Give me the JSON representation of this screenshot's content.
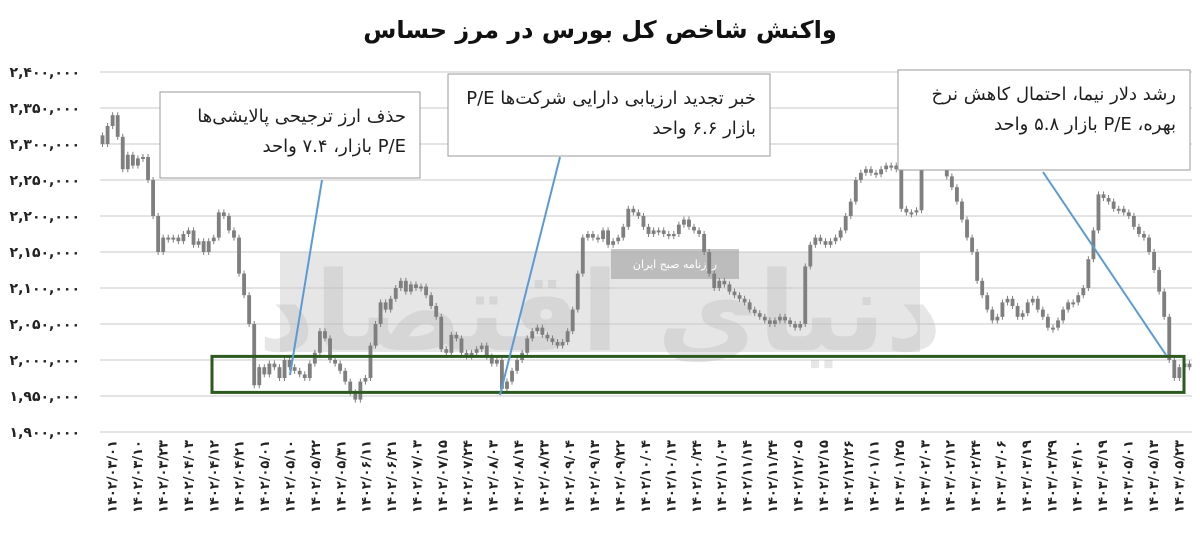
{
  "chart_data": {
    "type": "candlestick",
    "title": "واکنش شاخص کل بورس در مرز حساس",
    "ylim": [
      1900000,
      2400000
    ],
    "y_ticks": [
      1900000,
      1950000,
      2000000,
      2050000,
      2100000,
      2150000,
      2200000,
      2250000,
      2300000,
      2350000,
      2400000
    ],
    "y_tick_labels": [
      "۱,۹۰۰,۰۰۰",
      "۱,۹۵۰,۰۰۰",
      "۲,۰۰۰,۰۰۰",
      "۲,۰۵۰,۰۰۰",
      "۲,۱۰۰,۰۰۰",
      "۲,۱۵۰,۰۰۰",
      "۲,۲۰۰,۰۰۰",
      "۲,۲۵۰,۰۰۰",
      "۲,۳۰۰,۰۰۰",
      "۲,۳۵۰,۰۰۰",
      "۲,۴۰۰,۰۰۰"
    ],
    "x_tick_labels": [
      "۱۴۰۲/۰۳/۰۱",
      "۱۴۰۲/۰۳/۱۰",
      "۱۴۰۲/۰۳/۲۳",
      "۱۴۰۲/۰۴/۰۳",
      "۱۴۰۲/۰۴/۱۲",
      "۱۴۰۲/۰۴/۲۱",
      "۱۴۰۲/۰۵/۰۱",
      "۱۴۰۲/۰۵/۱۰",
      "۱۴۰۲/۰۵/۲۲",
      "۱۴۰۲/۰۵/۳۱",
      "۱۴۰۲/۰۶/۱۱",
      "۱۴۰۲/۰۶/۲۱",
      "۱۴۰۲/۰۷/۰۳",
      "۱۴۰۲/۰۷/۱۵",
      "۱۴۰۲/۰۷/۲۴",
      "۱۴۰۲/۰۸/۰۳",
      "۱۴۰۲/۰۸/۱۴",
      "۱۴۰۲/۰۸/۲۳",
      "۱۴۰۲/۰۹/۰۴",
      "۱۴۰۲/۰۹/۱۳",
      "۱۴۰۲/۰۹/۲۲",
      "۱۴۰۲/۱۰/۰۴",
      "۱۴۰۲/۱۰/۱۳",
      "۱۴۰۲/۱۰/۲۴",
      "۱۴۰۲/۱۱/۰۳",
      "۱۴۰۲/۱۱/۱۴",
      "۱۴۰۲/۱۱/۲۴",
      "۱۴۰۲/۱۲/۰۵",
      "۱۴۰۲/۱۲/۱۵",
      "۱۴۰۲/۱۲/۲۶",
      "۱۴۰۳/۰۱/۱۱",
      "۱۴۰۳/۰۱/۲۵",
      "۱۴۰۳/۰۲/۰۳",
      "۱۴۰۳/۰۲/۱۲",
      "۱۴۰۳/۰۲/۲۴",
      "۱۴۰۳/۰۳/۰۶",
      "۱۴۰۳/۰۳/۱۹",
      "۱۴۰۳/۰۳/۲۹",
      "۱۴۰۳/۰۴/۱۰",
      "۱۴۰۳/۰۴/۱۹",
      "۱۴۰۳/۰۵/۰۱",
      "۱۴۰۳/۰۵/۱۳",
      "۱۴۰۳/۰۵/۲۳"
    ],
    "closes": [
      2300000,
      2325000,
      2340000,
      2310000,
      2265000,
      2285000,
      2270000,
      2280000,
      2282000,
      2250000,
      2200000,
      2150000,
      2170000,
      2168000,
      2170000,
      2165000,
      2175000,
      2180000,
      2160000,
      2165000,
      2150000,
      2165000,
      2170000,
      2205000,
      2200000,
      2180000,
      2170000,
      2120000,
      2090000,
      2050000,
      1965000,
      1990000,
      1980000,
      1995000,
      1990000,
      1975000,
      2000000,
      1990000,
      1985000,
      1980000,
      1975000,
      1995000,
      2010000,
      2040000,
      2030000,
      2000000,
      1995000,
      1985000,
      1970000,
      1955000,
      1945000,
      1970000,
      1975000,
      2020000,
      2050000,
      2080000,
      2070000,
      2085000,
      2100000,
      2110000,
      2095000,
      2105000,
      2100000,
      2102000,
      2090000,
      2075000,
      2060000,
      2015000,
      2010000,
      2035000,
      2030000,
      2010000,
      2005000,
      2010000,
      2015000,
      2020000,
      2005000,
      1995000,
      2000000,
      1960000,
      1970000,
      1985000,
      2000000,
      2010000,
      2030000,
      2040000,
      2045000,
      2035000,
      2030000,
      2025000,
      2020000,
      2025000,
      2040000,
      2070000,
      2120000,
      2170000,
      2175000,
      2170000,
      2168000,
      2180000,
      2160000,
      2165000,
      2170000,
      2185000,
      2210000,
      2205000,
      2200000,
      2185000,
      2175000,
      2180000,
      2180000,
      2175000,
      2172000,
      2175000,
      2188000,
      2195000,
      2185000,
      2180000,
      2175000,
      2150000,
      2120000,
      2100000,
      2110000,
      2105000,
      2095000,
      2090000,
      2085000,
      2080000,
      2070000,
      2065000,
      2060000,
      2055000,
      2050000,
      2055000,
      2060000,
      2055000,
      2050000,
      2045000,
      2050000,
      2130000,
      2160000,
      2170000,
      2165000,
      2160000,
      2165000,
      2170000,
      2180000,
      2200000,
      2220000,
      2250000,
      2260000,
      2265000,
      2260000,
      2258000,
      2265000,
      2270000,
      2270000,
      2265000,
      2210000,
      2205000,
      2205000,
      2208000,
      2285000,
      2305000,
      2300000,
      2285000,
      2270000,
      2255000,
      2240000,
      2220000,
      2195000,
      2170000,
      2150000,
      2110000,
      2090000,
      2070000,
      2055000,
      2060000,
      2080000,
      2085000,
      2075000,
      2060000,
      2065000,
      2080000,
      2085000,
      2070000,
      2060000,
      2045000,
      2045000,
      2055000,
      2070000,
      2080000,
      2080000,
      2090000,
      2100000,
      2140000,
      2180000,
      2230000,
      2225000,
      2220000,
      2210000,
      2210000,
      2205000,
      2200000,
      2185000,
      2175000,
      2170000,
      2150000,
      2125000,
      2095000,
      2060000,
      2000000,
      1975000,
      1990000,
      1995000,
      1990000
    ]
  },
  "annotations": [
    {
      "lines": [
        "حذف ارز ترجیحی پالایشی‌ها",
        "P/E بازار، ۷.۴ واحد"
      ]
    },
    {
      "lines": [
        "خبر تجدید ارزیابی دارایی شرکت‌ها P/E",
        "بازار ۶.۶ واحد"
      ]
    },
    {
      "lines": [
        "رشد دلار نیما، احتمال کاهش نرخ",
        "بهره، P/E بازار ۵.۸ واحد"
      ]
    }
  ],
  "highlight_band": {
    "range": [
      1955000,
      2005000
    ],
    "color": "#2d5a1e"
  },
  "watermark": {
    "main": "دنیای اقتصاد",
    "badge": "روزنامه صبح ایران"
  },
  "colors": {
    "candle": "#7f7f7f",
    "grid": "#c8c8c8",
    "leader_line": "#5b9bd5",
    "box_border": "#999999"
  }
}
